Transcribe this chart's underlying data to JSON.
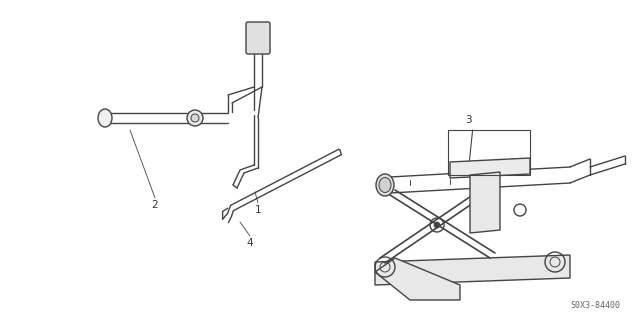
{
  "bg_color": "#ffffff",
  "line_color": "#444444",
  "text_color": "#333333",
  "fig_width": 6.4,
  "fig_height": 3.19,
  "dpi": 100,
  "part_code": "S0X3-84400"
}
